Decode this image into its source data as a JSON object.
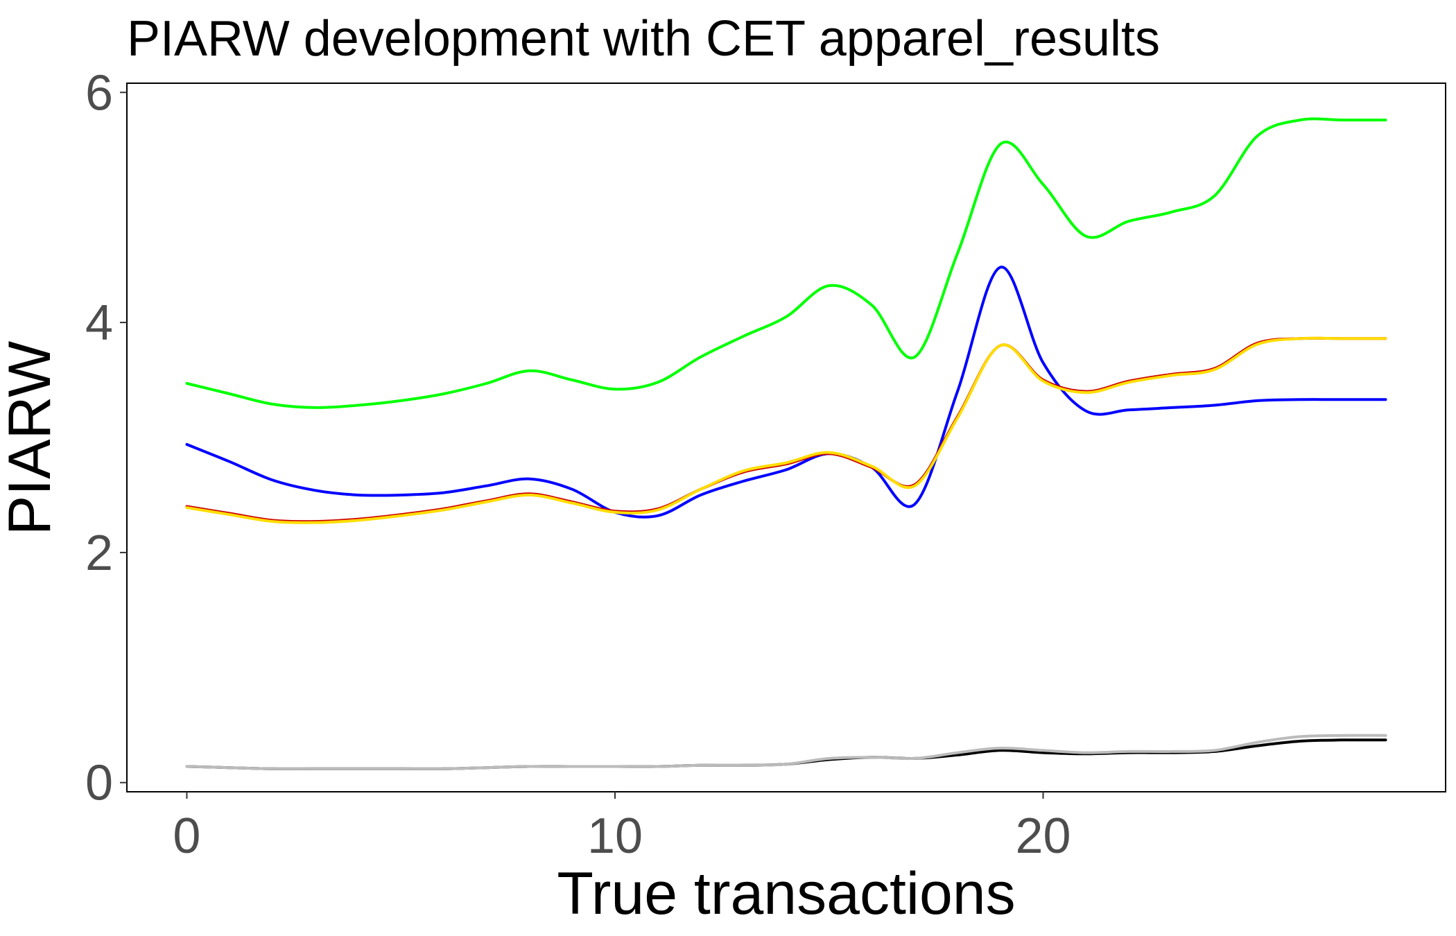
{
  "chart_data": {
    "type": "line",
    "title": "PIARW development with CET apparel_results",
    "xlabel": "True transactions",
    "ylabel": "PIARW",
    "xlim": [
      -1.4,
      29.4
    ],
    "ylim": [
      -0.08,
      6.08
    ],
    "xticks": [
      0,
      10,
      20
    ],
    "yticks": [
      0,
      2,
      4,
      6
    ],
    "x": [
      0,
      1,
      2,
      3,
      4,
      5,
      6,
      7,
      8,
      9,
      10,
      11,
      12,
      13,
      14,
      15,
      16,
      17,
      18,
      19,
      20,
      21,
      22,
      23,
      24,
      25,
      26,
      27,
      28
    ],
    "series": [
      {
        "name": "green",
        "color": "#00ff00",
        "values": [
          3.47,
          3.38,
          3.29,
          3.26,
          3.28,
          3.32,
          3.38,
          3.47,
          3.58,
          3.5,
          3.42,
          3.48,
          3.7,
          3.88,
          4.05,
          4.32,
          4.15,
          3.7,
          4.6,
          5.55,
          5.2,
          4.75,
          4.88,
          4.96,
          5.1,
          5.62,
          5.76,
          5.76,
          5.76
        ]
      },
      {
        "name": "blue",
        "color": "#0000ff",
        "values": [
          2.94,
          2.79,
          2.63,
          2.54,
          2.5,
          2.5,
          2.52,
          2.58,
          2.64,
          2.55,
          2.35,
          2.32,
          2.5,
          2.62,
          2.72,
          2.86,
          2.74,
          2.42,
          3.4,
          4.48,
          3.65,
          3.23,
          3.24,
          3.26,
          3.28,
          3.32,
          3.33,
          3.33,
          3.33
        ]
      },
      {
        "name": "red",
        "color": "#cc0000",
        "values": [
          2.4,
          2.34,
          2.28,
          2.27,
          2.29,
          2.33,
          2.38,
          2.45,
          2.51,
          2.44,
          2.36,
          2.38,
          2.55,
          2.7,
          2.77,
          2.86,
          2.74,
          2.59,
          3.18,
          3.8,
          3.5,
          3.4,
          3.49,
          3.55,
          3.6,
          3.82,
          3.86,
          3.86,
          3.86
        ]
      },
      {
        "name": "yellow",
        "color": "#ffdd00",
        "values": [
          2.39,
          2.33,
          2.27,
          2.26,
          2.28,
          2.32,
          2.37,
          2.44,
          2.5,
          2.43,
          2.35,
          2.37,
          2.55,
          2.71,
          2.78,
          2.87,
          2.75,
          2.58,
          3.17,
          3.8,
          3.49,
          3.39,
          3.48,
          3.54,
          3.59,
          3.81,
          3.86,
          3.86,
          3.86
        ]
      },
      {
        "name": "black",
        "color": "#000000",
        "values": [
          0.14,
          0.13,
          0.12,
          0.12,
          0.12,
          0.12,
          0.12,
          0.13,
          0.14,
          0.14,
          0.14,
          0.14,
          0.15,
          0.15,
          0.16,
          0.2,
          0.22,
          0.21,
          0.24,
          0.28,
          0.26,
          0.25,
          0.26,
          0.26,
          0.27,
          0.32,
          0.36,
          0.37,
          0.37
        ]
      },
      {
        "name": "grey",
        "color": "#bbbbbb",
        "values": [
          0.14,
          0.13,
          0.12,
          0.12,
          0.12,
          0.12,
          0.12,
          0.13,
          0.14,
          0.14,
          0.14,
          0.14,
          0.15,
          0.15,
          0.16,
          0.21,
          0.22,
          0.21,
          0.26,
          0.3,
          0.28,
          0.26,
          0.27,
          0.27,
          0.28,
          0.35,
          0.4,
          0.41,
          0.41
        ]
      }
    ]
  }
}
